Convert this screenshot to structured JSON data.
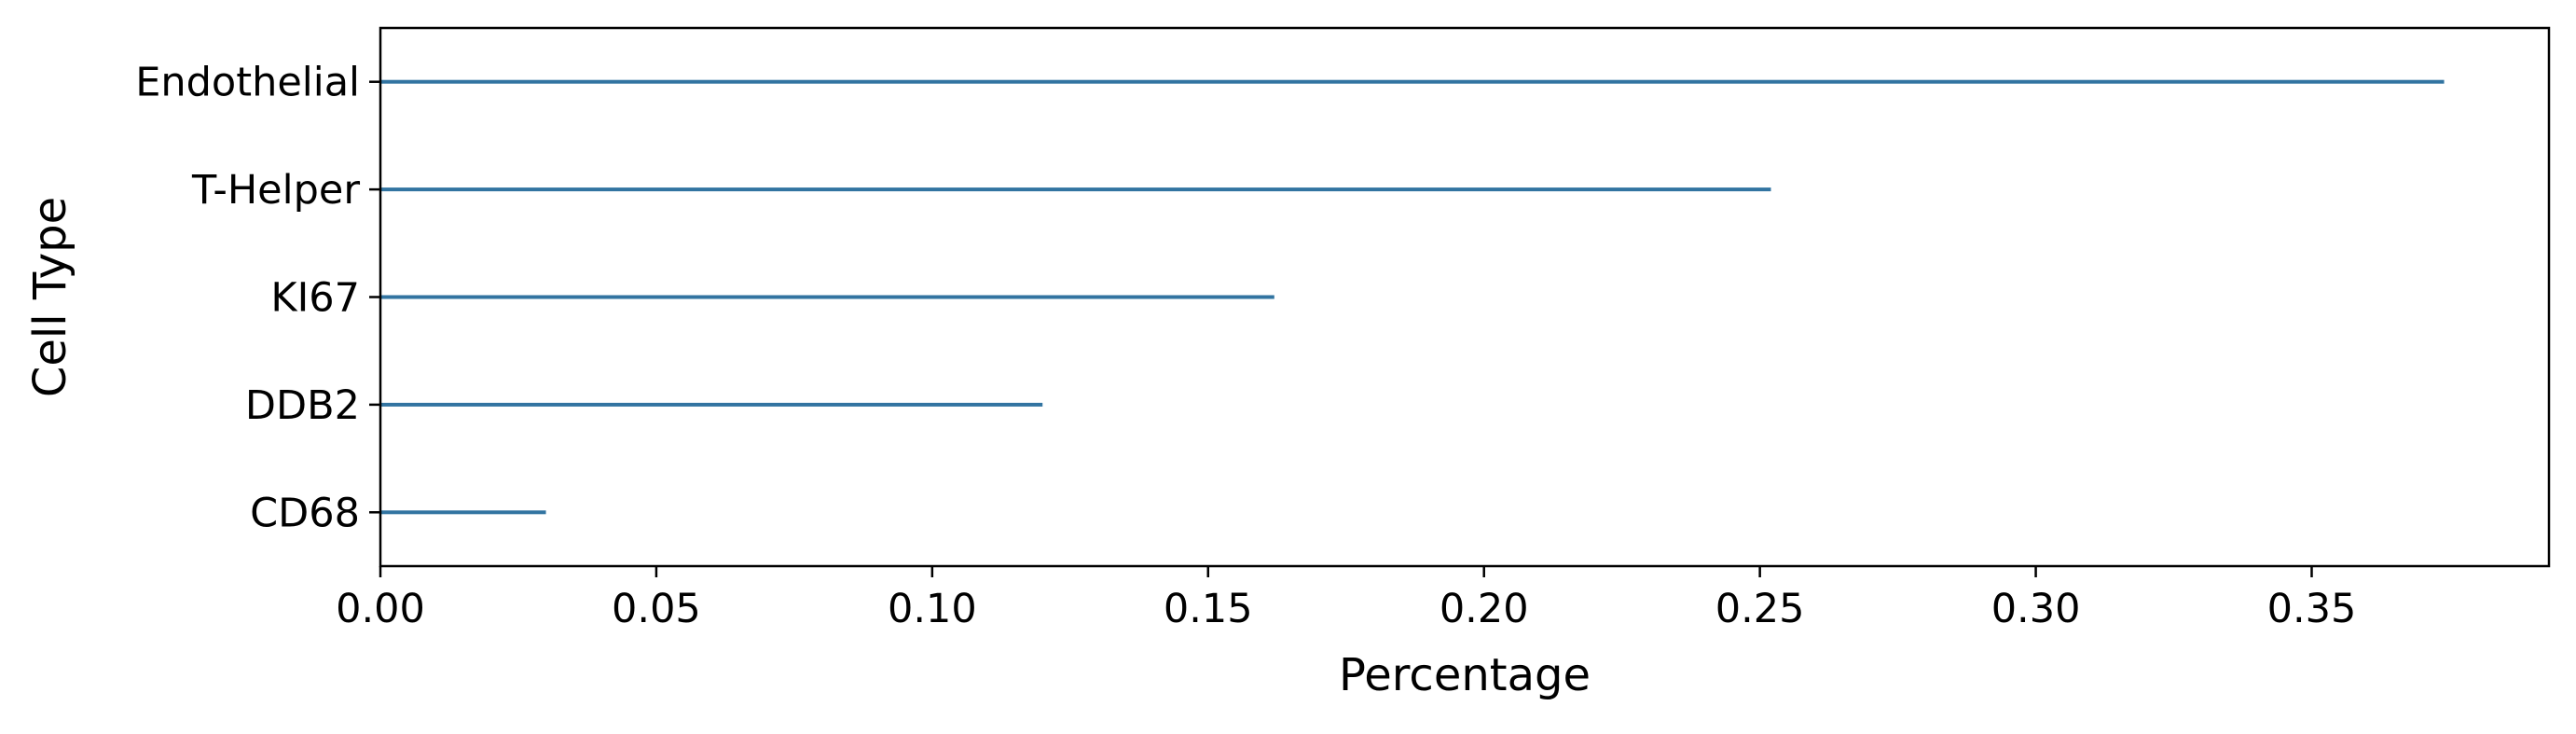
{
  "chart_data": {
    "type": "bar",
    "orientation": "horizontal",
    "categories": [
      "Endothelial",
      "T-Helper",
      "KI67",
      "DDB2",
      "CD68"
    ],
    "values": [
      0.374,
      0.252,
      0.162,
      0.12,
      0.03
    ],
    "xlabel": "Percentage",
    "ylabel": "Cell Type",
    "xlim": [
      0.0,
      0.393
    ],
    "xticks": [
      0.0,
      0.05,
      0.1,
      0.15,
      0.2,
      0.25,
      0.3,
      0.35
    ],
    "xtick_labels": [
      "0.00",
      "0.05",
      "0.10",
      "0.15",
      "0.20",
      "0.25",
      "0.30",
      "0.35"
    ],
    "grid": false,
    "bar_color": "#3274a1"
  }
}
